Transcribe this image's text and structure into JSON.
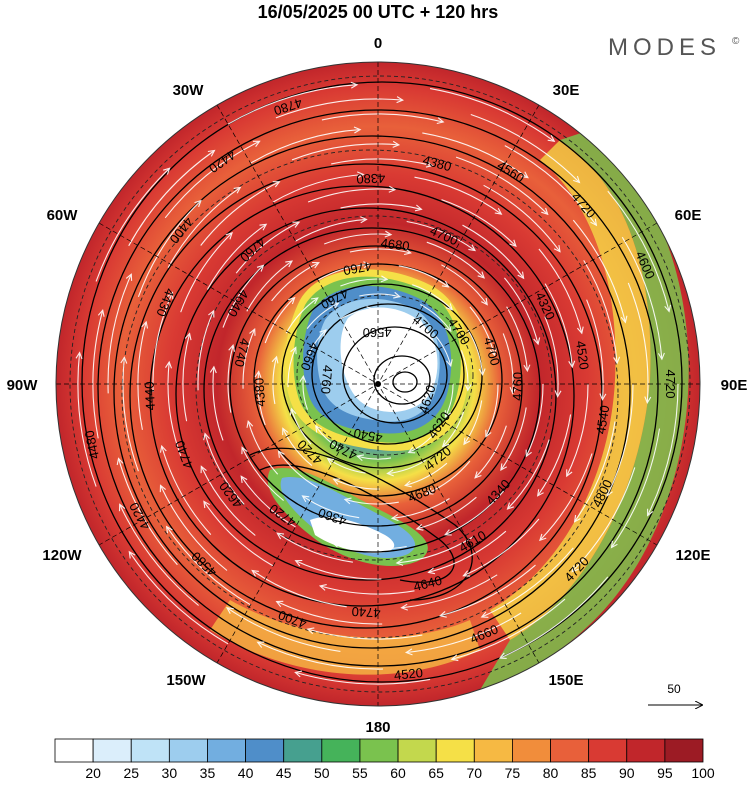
{
  "header": {
    "title": "16/05/2025  00 UTC  + 120 hrs",
    "brand": "MODES",
    "brand_mark": "©"
  },
  "longitude_labels": {
    "top": "0",
    "top_right": "30E",
    "right_upper": "60E",
    "right": "90E",
    "right_lower": "120E",
    "bottom_right": "150E",
    "bottom": "180",
    "bottom_left": "150W",
    "left_lower": "120W",
    "left": "90W",
    "left_upper": "60W",
    "top_left": "30W"
  },
  "contour_labels": [
    "4720",
    "4660",
    "4580",
    "4430",
    "4380",
    "4320",
    "4340",
    "4360",
    "4380",
    "4760",
    "4700",
    "4620",
    "4520",
    "4420",
    "4400",
    "4380",
    "4520",
    "4610",
    "4720",
    "4740",
    "4760",
    "4700",
    "4620",
    "4540",
    "4480",
    "4420",
    "4560",
    "4540",
    "4640",
    "4620",
    "4640",
    "4680",
    "4700",
    "4720",
    "4740",
    "4760",
    "4780",
    "4720",
    "4800",
    "4740",
    "4740",
    "4760",
    "4700",
    "4760",
    "4680",
    "4720",
    "4660",
    "4560",
    "4600",
    "4720",
    "4700",
    "4440"
  ],
  "vector_reference": {
    "value": "50"
  },
  "colorbar": {
    "ticks": [
      "20",
      "25",
      "30",
      "35",
      "40",
      "45",
      "50",
      "55",
      "60",
      "65",
      "70",
      "75",
      "80",
      "85",
      "90",
      "95",
      "100"
    ],
    "colors": [
      "#ffffff",
      "#dbeefb",
      "#bfe3f7",
      "#9dcdee",
      "#72aee0",
      "#4f8ec9",
      "#46a08f",
      "#45b35a",
      "#7ac24e",
      "#c3d84d",
      "#f5e047",
      "#f6b943",
      "#f18d3b",
      "#e8603a",
      "#d93a33",
      "#c1262b",
      "#9c1b24"
    ]
  }
}
